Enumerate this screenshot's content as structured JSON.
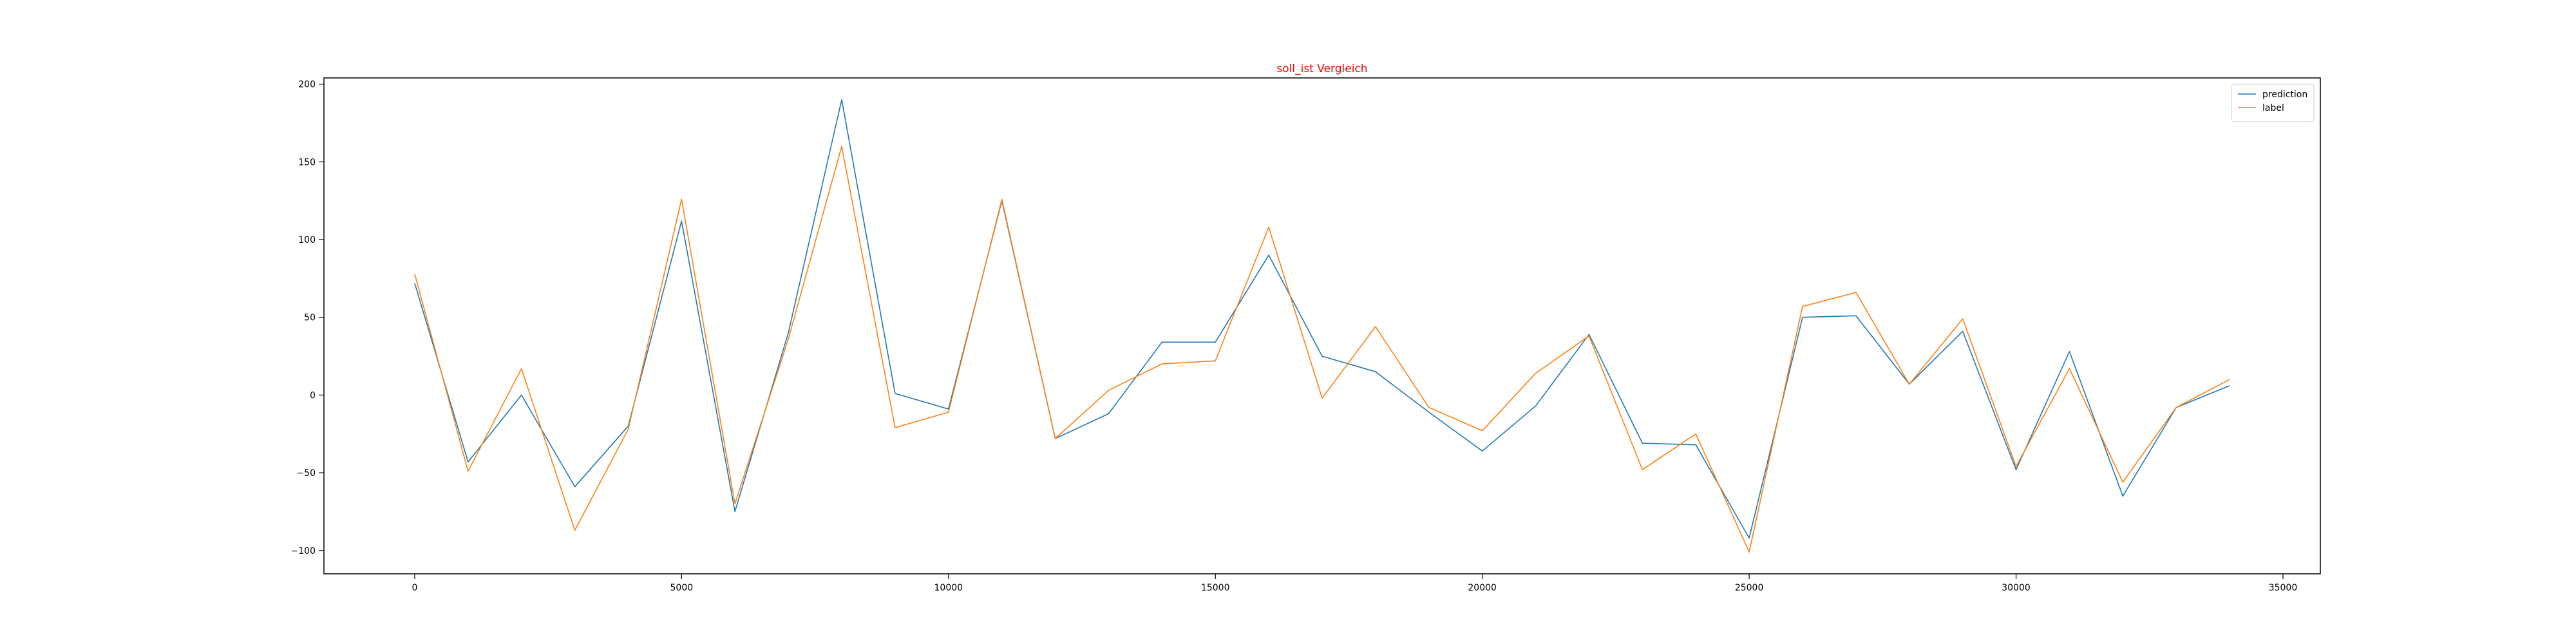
{
  "chart_data": {
    "type": "line",
    "title": "soll_ist Vergleich",
    "title_color": "#ff0000",
    "xlabel": "",
    "ylabel": "",
    "xlim": [
      -1700,
      35700
    ],
    "ylim": [
      -115,
      204
    ],
    "x_ticks": [
      0,
      5000,
      10000,
      15000,
      20000,
      25000,
      30000,
      35000
    ],
    "y_ticks": [
      -100,
      -50,
      0,
      50,
      100,
      150,
      200
    ],
    "grid": false,
    "legend_position": "top-right",
    "x": [
      0,
      1000,
      2000,
      3000,
      4000,
      5000,
      6000,
      7000,
      8000,
      9000,
      10000,
      11000,
      12000,
      13000,
      14000,
      15000,
      16000,
      17000,
      18000,
      19000,
      20000,
      21000,
      22000,
      23000,
      24000,
      25000,
      26000,
      27000,
      28000,
      29000,
      30000,
      31000,
      32000,
      33000,
      34000
    ],
    "series": [
      {
        "name": "prediction",
        "color": "#1f77b4",
        "values": [
          72,
          -43,
          0,
          -59,
          -20,
          112,
          -75,
          40,
          190,
          1,
          -9,
          125,
          -28,
          -12,
          34,
          34,
          90,
          25,
          15,
          -11,
          -36,
          -7,
          39,
          -31,
          -32,
          -92,
          50,
          51,
          7,
          41,
          -48,
          28,
          -65,
          -8,
          6
        ]
      },
      {
        "name": "label",
        "color": "#ff7f0e",
        "values": [
          78,
          -49,
          17,
          -87,
          -22,
          126,
          -70,
          36,
          160,
          -21,
          -11,
          126,
          -28,
          3,
          20,
          22,
          108,
          -2,
          44,
          -8,
          -23,
          14,
          38,
          -48,
          -25,
          -101,
          57,
          66,
          7,
          49,
          -46,
          17,
          -56,
          -8,
          10
        ]
      }
    ]
  }
}
